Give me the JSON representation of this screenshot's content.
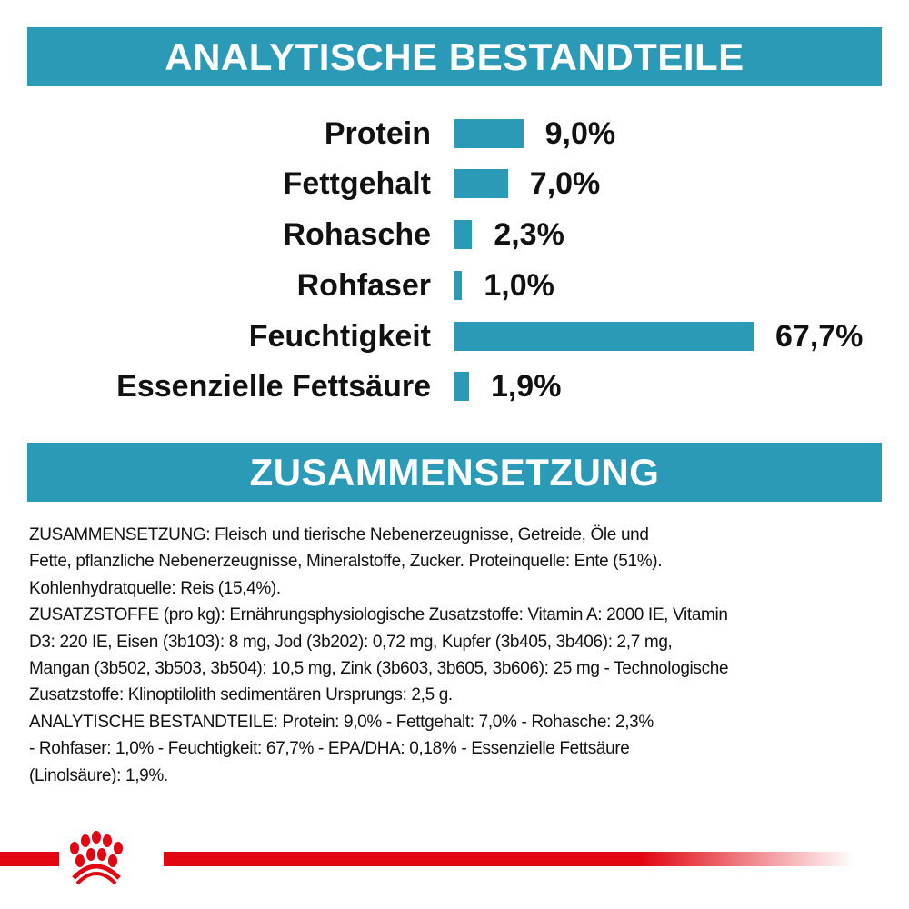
{
  "colors": {
    "accent": "#2a9ab7",
    "brand_red": "#e10612",
    "text": "#111111"
  },
  "section1": {
    "title": "ANALYTISCHE BESTANDTEILE"
  },
  "section2": {
    "title": "ZUSAMMENSETZUNG"
  },
  "chart_data": {
    "type": "bar",
    "orientation": "horizontal",
    "categories": [
      "Protein",
      "Fettgehalt",
      "Rohasche",
      "Rohfaser",
      "Feuchtigkeit",
      "Essenzielle Fettsäure"
    ],
    "values": [
      9.0,
      7.0,
      2.3,
      1.0,
      67.7,
      1.9
    ],
    "value_labels": [
      "9,0%",
      "7,0%",
      "2,3%",
      "1,0%",
      "67,7%",
      "1,9%"
    ],
    "unit": "%",
    "grid": false,
    "bar_color": "#2a9ab7"
  },
  "composition_lines": [
    "ZUSAMMENSETZUNG: Fleisch und tierische Nebenerzeugnisse, Getreide, Öle und",
    "Fette, pflanzliche Nebenerzeugnisse, Mineralstoffe, Zucker. Proteinquelle: Ente (51%).",
    "Kohlenhydratquelle: Reis (15,4%).",
    "ZUSATZSTOFFE (pro kg): Ernährungsphysiologische Zusatzstoffe: Vitamin A: 2000 IE, Vitamin",
    "D3: 220 IE, Eisen (3b103): 8 mg, Jod (3b202): 0,72 mg, Kupfer (3b405, 3b406): 2,7 mg,",
    "Mangan (3b502, 3b503, 3b504): 10,5 mg, Zink (3b603, 3b605, 3b606): 25 mg - Technologische",
    "Zusatzstoffe: Klinoptilolith sedimentären Ursprungs: 2,5 g.",
    "ANALYTISCHE BESTANDTEILE: Protein: 9,0% - Fettgehalt: 7,0% - Rohasche: 2,3%",
    "- Rohfaser: 1,0% - Feuchtigkeit: 67,7% - EPA/DHA: 0,18% - Essenzielle Fettsäure",
    "(Linolsäure): 1,9%."
  ],
  "logo": {
    "icon": "crown-paw-logo"
  }
}
